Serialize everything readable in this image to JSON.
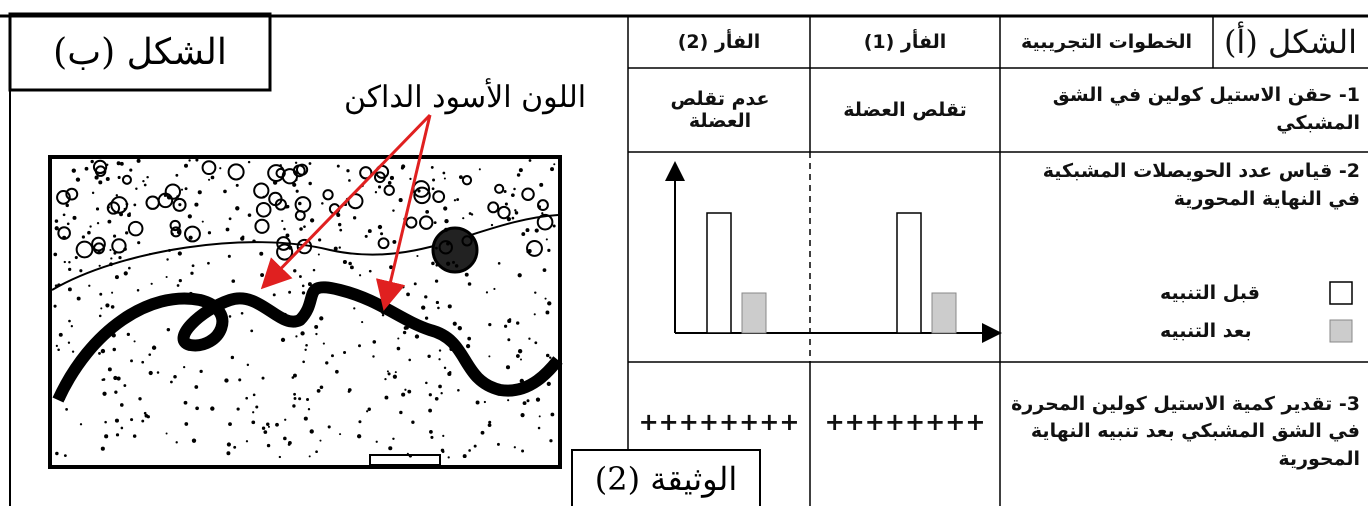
{
  "figure_b": {
    "title": "الشكل (ب)",
    "annotation": "اللون الأسود الداكن"
  },
  "document_label": "الوثيقة (2)",
  "table": {
    "figure_label": "الشكل (أ)",
    "header": [
      "الخطوات التجريبية",
      "الفأر (1)",
      "الفأر (2)"
    ],
    "rows": [
      [
        "1- حقن الاستيل كولين في الشق المشبكي",
        "تقلص العضلة",
        "عدم تقلص العضلة"
      ],
      [
        "2- قياس عدد الحويصلات المشبكية في النهاية المحورية"
      ],
      [
        "3- تقدير كمية الاستيل كولين المحررة في الشق المشبكي بعد تنبيه النهاية المحورية",
        "++++++++",
        "++++++++"
      ]
    ],
    "legend": [
      "قبل التنبيه",
      "بعد التنبيه"
    ]
  }
}
